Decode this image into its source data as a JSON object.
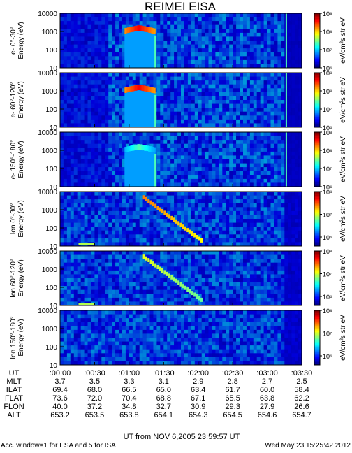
{
  "chart_data": {
    "type": "heatmap",
    "title": "REIMEI EISA",
    "x_ticks": [
      ":00:00",
      ":00:30",
      ":01:00",
      ":01:30",
      ":02:00",
      ":02:30",
      ":03:00",
      ":03:30"
    ],
    "y_ticks": [
      "10000",
      "1000",
      "100",
      "10"
    ],
    "y_scale": "log",
    "y_range": [
      10,
      10000
    ],
    "colorbar_label": "eV/cm²s str eV",
    "panels": [
      {
        "label": "e- 0°-30°",
        "ylabel": "Energy (eV)",
        "cbar_min_exp": 6,
        "cbar_max_exp": 9,
        "cbar_ticks": [
          "10⁶",
          "10⁷",
          "10⁸",
          "10⁹"
        ]
      },
      {
        "label": "e- 60°-120°",
        "ylabel": "Energy (eV)",
        "cbar_min_exp": 6,
        "cbar_max_exp": 9,
        "cbar_ticks": [
          "10⁶",
          "10⁷",
          "10⁸",
          "10⁹"
        ]
      },
      {
        "label": "e- 150°-180°",
        "ylabel": "Energy (eV)",
        "cbar_min_exp": 6,
        "cbar_max_exp": 9,
        "cbar_ticks": [
          "10⁶",
          "10⁷",
          "10⁸",
          "10⁹"
        ]
      },
      {
        "label": "Ion 0°-30°",
        "ylabel": "Energy (eV)",
        "cbar_min_exp": 5.6,
        "cbar_max_exp": 8,
        "cbar_ticks": [
          "10⁶",
          "10⁷",
          "10⁸"
        ]
      },
      {
        "label": "Ion 60°-120°",
        "ylabel": "Energy (eV)",
        "cbar_min_exp": 5.6,
        "cbar_max_exp": 8,
        "cbar_ticks": [
          "10⁶",
          "10⁷",
          "10⁸"
        ]
      },
      {
        "label": "Ion 150°-180°",
        "ylabel": "Energy (eV)",
        "cbar_min_exp": 5.6,
        "cbar_max_exp": 8,
        "cbar_ticks": [
          "10⁶",
          "10⁷",
          "10⁸"
        ]
      }
    ],
    "ephemeris": {
      "rows": [
        {
          "label": "UT",
          "values": []
        },
        {
          "label": "MLT",
          "values": [
            "3.7",
            "3.5",
            "3.3",
            "3.1",
            "2.9",
            "2.8",
            "2.7",
            "2.5"
          ]
        },
        {
          "label": "ILAT",
          "values": [
            "69.4",
            "68.0",
            "66.5",
            "65.0",
            "63.4",
            "61.7",
            "60.0",
            "58.4"
          ]
        },
        {
          "label": "FLAT",
          "values": [
            "73.6",
            "72.0",
            "70.4",
            "68.8",
            "67.1",
            "65.5",
            "63.8",
            "62.2"
          ]
        },
        {
          "label": "FLON",
          "values": [
            "40.0",
            "37.2",
            "34.8",
            "32.7",
            "30.9",
            "29.3",
            "27.9",
            "26.6"
          ]
        },
        {
          "label": "ALT",
          "values": [
            "653.2",
            "653.5",
            "653.8",
            "654.1",
            "654.3",
            "654.5",
            "654.6",
            "654.7"
          ]
        }
      ]
    }
  },
  "footer": {
    "ut_line": "UT from NOV  6,2005  23:59:57 UT",
    "acc_line": "Acc. window=1 for ESA and 5 for ISA",
    "date_line": "Wed May 23 15:25:42 2012"
  }
}
